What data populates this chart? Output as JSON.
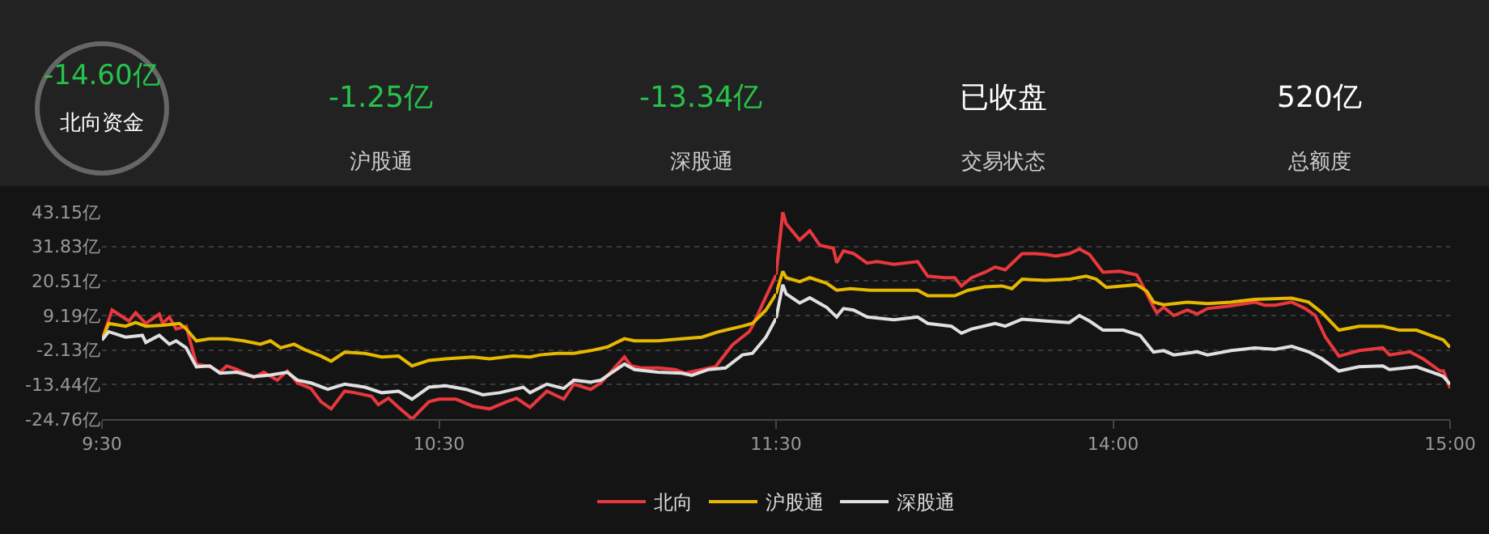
{
  "chart_data": [
    {
      "type": "other",
      "annotations": [
        "-14.60亿",
        "北向资金",
        "-1.25亿",
        "沪股通",
        "-13.34亿",
        "深股通",
        "已收盘",
        "交易状态",
        "520亿",
        "总额度"
      ],
      "colors": [
        "#27c24c",
        "#ffffff",
        "#27c24c",
        "#cccccc",
        "#27c24c",
        "#cccccc",
        "#ffffff",
        "#cccccc",
        "#ffffff",
        "#cccccc"
      ]
    },
    {
      "type": "line",
      "xlim": [
        9.5,
        11.5
      ],
      "xticks": [
        {
          "value": 9.5,
          "label": "9:30"
        },
        {
          "value": 10.5,
          "label": "10:30"
        },
        {
          "value": 11.5,
          "label": "11:30"
        }
      ],
      "ylim": [
        -24.76,
        43.15
      ],
      "yticks": [
        {
          "value": -24.76,
          "label": "-24.76亿"
        },
        {
          "value": -13.44,
          "label": "-13.44亿"
        },
        {
          "value": -2.13,
          "label": "-2.13亿"
        },
        {
          "value": 9.19,
          "label": "9.19亿"
        },
        {
          "value": 20.51,
          "label": "20.51亿"
        },
        {
          "value": 31.83,
          "label": "31.83亿"
        },
        {
          "value": 43.15,
          "label": "43.15亿"
        }
      ],
      "grid": "y",
      "legend": "bottom",
      "series": [
        {
          "name": "北向",
          "color": "#e8383d",
          "x": [
            9.5,
            9.53,
            9.58,
            9.6,
            9.63,
            9.67,
            9.68,
            9.7,
            9.72,
            9.75,
            9.78,
            9.82,
            9.85,
            9.87,
            9.9,
            9.95,
            9.98,
            10.02,
            10.05,
            10.08,
            10.12,
            10.15,
            10.18,
            10.22,
            10.25,
            10.3,
            10.32,
            10.35,
            10.38,
            10.42,
            10.47,
            10.5,
            10.55,
            10.6,
            10.65,
            10.7,
            10.73,
            10.77,
            10.82,
            10.87,
            10.9,
            10.95,
            10.98,
            11.05,
            11.07,
            11.1,
            11.15,
            11.2,
            11.23,
            11.28,
            11.32,
            11.37,
            11.42,
            11.43,
            11.47,
            11.5
          ],
          "values": [
            1.2,
            11.0,
            7.4,
            10.1,
            6.6,
            9.7,
            6.6,
            8.7,
            4.8,
            5.7,
            -6.7,
            -7.6,
            -9.4,
            -7.3,
            -8.5,
            -11.1,
            -9.4,
            -12.0,
            -9.0,
            -12.9,
            -14.7,
            -19.1,
            -21.4,
            -15.6,
            -16.1,
            -17.3,
            -20.0,
            -17.9,
            -20.9,
            -24.7,
            -19.1,
            -18.2,
            -18.2,
            -20.5,
            -21.4,
            -19.1,
            -17.9,
            -20.9,
            -15.6,
            -18.2,
            -13.3,
            -15.0,
            -12.9,
            -4.4,
            -7.3,
            -8.0,
            -8.0,
            -8.5,
            -9.7,
            -8.5,
            -7.6,
            -0.5,
            3.9,
            5.7,
            15.4,
            22.5
          ]
        },
        {
          "name": "沪股通",
          "color": "#e6b800",
          "x": [
            9.5,
            9.52,
            9.57,
            9.6,
            9.63,
            9.68,
            9.73,
            9.75,
            9.78,
            9.82,
            9.87,
            9.92,
            9.97,
            10,
            10.03,
            10.07,
            10.1,
            10.15,
            10.18,
            10.22,
            10.28,
            10.33,
            10.38,
            10.42,
            10.47,
            10.52,
            10.6,
            10.65,
            10.72,
            10.77,
            10.8,
            10.85,
            10.9,
            10.95,
            11,
            11.05,
            11.08,
            11.15,
            11.22,
            11.28,
            11.33,
            11.4,
            11.43,
            11.47,
            11.5
          ],
          "values": [
            1.2,
            6.6,
            5.7,
            6.9,
            5.7,
            6.0,
            6.6,
            4.8,
            0.9,
            1.6,
            1.6,
            0.9,
            -0.2,
            0.9,
            -1.4,
            -0.2,
            -1.9,
            -4.1,
            -5.8,
            -2.8,
            -3.2,
            -4.4,
            -4.1,
            -7.3,
            -5.5,
            -5.0,
            -4.4,
            -5.0,
            -4.1,
            -4.4,
            -3.7,
            -3.2,
            -3.2,
            -2.3,
            -1.1,
            1.6,
            0.9,
            0.9,
            1.6,
            2.1,
            3.9,
            5.7,
            6.6,
            11.0,
            16.3
          ]
        },
        {
          "name": "深股通",
          "color": "#e0e0e0",
          "x": [
            9.5,
            9.52,
            9.57,
            9.62,
            9.63,
            9.67,
            9.7,
            9.72,
            9.75,
            9.78,
            9.82,
            9.85,
            9.9,
            9.95,
            10,
            10.05,
            10.08,
            10.12,
            10.17,
            10.22,
            10.28,
            10.33,
            10.38,
            10.42,
            10.47,
            10.52,
            10.58,
            10.63,
            10.68,
            10.75,
            10.77,
            10.82,
            10.87,
            10.9,
            10.95,
            10.98,
            11.05,
            11.08,
            11.15,
            11.22,
            11.25,
            11.3,
            11.35,
            11.4,
            11.43,
            11.47,
            11.5
          ],
          "values": [
            1.2,
            3.9,
            2.1,
            2.7,
            0.4,
            2.7,
            -0.2,
            0.9,
            -1.4,
            -7.6,
            -7.3,
            -9.7,
            -9.4,
            -10.8,
            -10.3,
            -9.4,
            -12.0,
            -12.9,
            -15.0,
            -13.3,
            -14.3,
            -16.1,
            -15.6,
            -18.2,
            -14.3,
            -13.8,
            -15.0,
            -16.8,
            -16.1,
            -14.3,
            -16.1,
            -13.3,
            -14.7,
            -12.0,
            -12.6,
            -12.0,
            -6.7,
            -8.5,
            -9.4,
            -9.7,
            -10.4,
            -8.5,
            -8.0,
            -3.7,
            -3.2,
            2.1,
            8.3
          ]
        }
      ]
    },
    {
      "type": "line",
      "xlim": [
        13,
        15
      ],
      "xticks": [
        {
          "value": 14,
          "label": "14:00"
        },
        {
          "value": 15,
          "label": "15:00"
        }
      ],
      "ylim": [
        -24.76,
        43.15
      ],
      "yticks": [
        {
          "value": -24.76,
          "label": null
        },
        {
          "value": -13.44,
          "label": null
        },
        {
          "value": -2.13,
          "label": null
        },
        {
          "value": 9.19,
          "label": null
        },
        {
          "value": 20.51,
          "label": null
        },
        {
          "value": 31.83,
          "label": null
        },
        {
          "value": 43.15,
          "label": null
        }
      ],
      "grid": "y",
      "tick_labels": "x",
      "series": [
        {
          "color": "#e8383d",
          "x": [
            13,
            13.02,
            13.03,
            13.07,
            13.1,
            13.13,
            13.17,
            13.18,
            13.2,
            13.23,
            13.27,
            13.3,
            13.35,
            13.42,
            13.45,
            13.5,
            13.53,
            13.55,
            13.58,
            13.62,
            13.65,
            13.68,
            13.73,
            13.77,
            13.8,
            13.83,
            13.87,
            13.9,
            13.93,
            13.97,
            14.02,
            14.07,
            14.08,
            14.12,
            14.13,
            14.15,
            14.18,
            14.22,
            14.25,
            14.28,
            14.35,
            14.42,
            14.45,
            14.48,
            14.53,
            14.57,
            14.6,
            14.63,
            14.67,
            14.73,
            14.8,
            14.82,
            14.88,
            14.92,
            14.97,
            14.98,
            15
          ],
          "values": [
            22.5,
            43.1,
            39.3,
            34.0,
            37.0,
            32.2,
            31.3,
            26.5,
            30.4,
            29.5,
            26.4,
            26.9,
            26.0,
            26.9,
            22.1,
            21.6,
            21.6,
            18.9,
            21.6,
            23.4,
            25.1,
            24.2,
            29.5,
            29.5,
            29.2,
            28.7,
            29.5,
            31.0,
            29.2,
            23.4,
            23.7,
            22.5,
            20.7,
            11.9,
            10.1,
            11.9,
            9.2,
            11.0,
            9.7,
            11.5,
            12.4,
            13.6,
            12.6,
            12.6,
            13.6,
            11.5,
            9.2,
            2.1,
            -4.1,
            -2.3,
            -1.4,
            -3.7,
            -2.7,
            -5.0,
            -9.0,
            -9.0,
            -14.6
          ]
        },
        {
          "color": "#e6b800",
          "x": [
            13,
            13.02,
            13.03,
            13.07,
            13.1,
            13.15,
            13.18,
            13.22,
            13.28,
            13.35,
            13.42,
            13.45,
            13.53,
            13.57,
            13.62,
            13.67,
            13.7,
            13.73,
            13.8,
            13.87,
            13.92,
            13.95,
            13.98,
            14.07,
            14.1,
            14.12,
            14.15,
            14.22,
            14.28,
            14.35,
            14.42,
            14.53,
            14.58,
            14.62,
            14.67,
            14.73,
            14.8,
            14.85,
            14.9,
            14.97,
            14.98,
            15
          ],
          "values": [
            16.3,
            23.7,
            21.6,
            20.3,
            21.6,
            19.8,
            17.5,
            18.0,
            17.5,
            17.5,
            17.5,
            15.7,
            15.7,
            17.5,
            18.6,
            18.9,
            18.0,
            21.1,
            20.7,
            21.1,
            22.1,
            21.1,
            18.4,
            19.3,
            17.2,
            13.6,
            12.7,
            13.6,
            13.1,
            13.6,
            14.5,
            14.9,
            13.6,
            10.1,
            4.4,
            5.7,
            5.7,
            4.4,
            4.4,
            1.6,
            1.2,
            -1.25
          ]
        },
        {
          "color": "#e0e0e0",
          "x": [
            13,
            13.02,
            13.03,
            13.07,
            13.1,
            13.15,
            13.18,
            13.2,
            13.23,
            13.27,
            13.35,
            13.42,
            13.45,
            13.52,
            13.55,
            13.58,
            13.65,
            13.68,
            13.73,
            13.8,
            13.87,
            13.9,
            13.93,
            13.97,
            14.03,
            14.08,
            14.12,
            14.15,
            14.18,
            14.25,
            14.28,
            14.35,
            14.42,
            14.48,
            14.53,
            14.58,
            14.62,
            14.67,
            14.73,
            14.8,
            14.82,
            14.9,
            14.97,
            14.98,
            15
          ],
          "values": [
            8.3,
            19.3,
            16.3,
            13.3,
            15.0,
            11.9,
            8.7,
            11.5,
            11.0,
            8.7,
            7.8,
            8.7,
            6.6,
            5.7,
            3.4,
            4.8,
            6.6,
            5.7,
            8.0,
            7.4,
            6.9,
            9.2,
            7.4,
            4.4,
            4.4,
            2.7,
            -2.8,
            -2.3,
            -3.7,
            -2.7,
            -3.7,
            -2.3,
            -1.4,
            -1.9,
            -0.9,
            -2.7,
            -5.0,
            -9.0,
            -7.6,
            -7.3,
            -8.5,
            -7.6,
            -10.3,
            -10.8,
            -13.34
          ]
        }
      ]
    }
  ]
}
